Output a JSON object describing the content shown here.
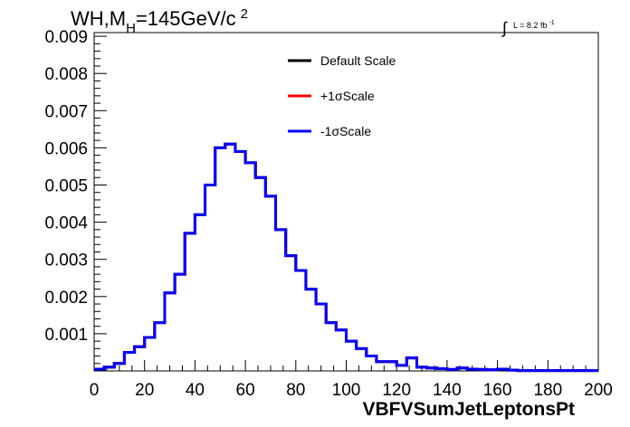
{
  "chart_data": {
    "type": "line",
    "title_parts": {
      "main": "WH,M",
      "sub": "H",
      "rest": "=145GeV/c",
      "sup": "2"
    },
    "lumi_text": {
      "integral": "∫",
      "label": "L = 8.2 fb",
      "sup": "-1"
    },
    "xlabel": "VBFVSumJetLeptonsPt",
    "ylabel": "",
    "xlim": [
      0,
      200
    ],
    "ylim": [
      0,
      0.0091
    ],
    "x_ticks": [
      "0",
      "20",
      "40",
      "60",
      "80",
      "100",
      "120",
      "140",
      "160",
      "180",
      "200"
    ],
    "y_ticks": [
      "0.001",
      "0.002",
      "0.003",
      "0.004",
      "0.005",
      "0.006",
      "0.007",
      "0.008",
      "0.009"
    ],
    "bin_width": 4,
    "bin_edges_start": 0,
    "legend_position": "top-center",
    "series": [
      {
        "name": "Default Scale",
        "color": "#000000",
        "values": [
          5e-05,
          0.0001,
          0.0002,
          0.0005,
          0.00065,
          0.0009,
          0.0013,
          0.0021,
          0.0026,
          0.0037,
          0.0042,
          0.005,
          0.006,
          0.0061,
          0.0059,
          0.0056,
          0.0052,
          0.0047,
          0.0038,
          0.0031,
          0.0027,
          0.0022,
          0.0018,
          0.0013,
          0.0011,
          0.0008,
          0.0006,
          0.0004,
          0.00025,
          0.00025,
          0.00015,
          0.00035,
          0.0001,
          8e-05,
          6e-05,
          4e-05,
          8e-05,
          5e-05,
          4e-05,
          3e-05,
          5e-05,
          2e-05,
          1e-05,
          1e-05,
          1e-05,
          1e-05,
          1e-05,
          1e-05,
          1e-05,
          1e-05
        ]
      },
      {
        "name": "+1σScale",
        "color": "#ff0000",
        "values": [
          5e-05,
          0.0001,
          0.0002,
          0.0005,
          0.00065,
          0.0009,
          0.0013,
          0.0021,
          0.0026,
          0.0037,
          0.0042,
          0.005,
          0.006,
          0.0061,
          0.0059,
          0.0056,
          0.0052,
          0.0047,
          0.0038,
          0.0031,
          0.0027,
          0.0022,
          0.0018,
          0.0013,
          0.0011,
          0.0008,
          0.0006,
          0.0004,
          0.00025,
          0.00025,
          0.00015,
          0.00035,
          0.0001,
          8e-05,
          6e-05,
          4e-05,
          8e-05,
          5e-05,
          4e-05,
          3e-05,
          5e-05,
          2e-05,
          1e-05,
          1e-05,
          1e-05,
          1e-05,
          1e-05,
          1e-05,
          1e-05,
          1e-05
        ]
      },
      {
        "name": "-1σScale",
        "color": "#0000ff",
        "values": [
          5e-05,
          0.0001,
          0.0002,
          0.0005,
          0.00065,
          0.0009,
          0.0013,
          0.0021,
          0.0026,
          0.0037,
          0.0042,
          0.005,
          0.006,
          0.0061,
          0.0059,
          0.0056,
          0.0052,
          0.0047,
          0.0038,
          0.0031,
          0.0027,
          0.0022,
          0.0018,
          0.0013,
          0.0011,
          0.0008,
          0.0006,
          0.0004,
          0.00025,
          0.00025,
          0.00015,
          0.00035,
          0.0001,
          8e-05,
          6e-05,
          4e-05,
          8e-05,
          5e-05,
          4e-05,
          3e-05,
          5e-05,
          2e-05,
          1e-05,
          1e-05,
          1e-05,
          1e-05,
          1e-05,
          1e-05,
          1e-05,
          1e-05
        ]
      }
    ]
  }
}
